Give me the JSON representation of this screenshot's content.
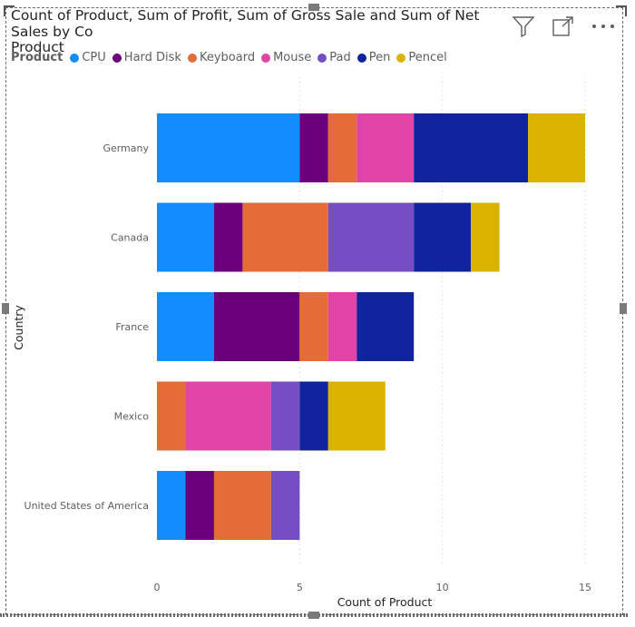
{
  "visual": {
    "title": "Count of Product, Sum of Profit, Sum of Gross Sale and Sum of Net Sales by Country and Product",
    "title_line1": "Count of Product, Sum of Profit, Sum of Gross Sale and Sum of Net Sales by Co",
    "title_line2": "Product",
    "icons": [
      "filter-icon",
      "focus-mode-icon",
      "more-options-icon"
    ]
  },
  "legend": {
    "title": "Product"
  },
  "chart_data": {
    "type": "bar",
    "orientation": "horizontal",
    "stacked": true,
    "categories": [
      "Germany",
      "Canada",
      "France",
      "Mexico",
      "United States of America"
    ],
    "series": [
      {
        "name": "CPU",
        "color": "#118DFF",
        "values": [
          5,
          2,
          2,
          0,
          1
        ]
      },
      {
        "name": "Hard Disk",
        "color": "#6B007B",
        "values": [
          1,
          1,
          3,
          0,
          1
        ]
      },
      {
        "name": "Keyboard",
        "color": "#E66C37",
        "values": [
          1,
          3,
          1,
          1,
          2
        ]
      },
      {
        "name": "Mouse",
        "color": "#E044A7",
        "values": [
          2,
          0,
          1,
          3,
          0
        ]
      },
      {
        "name": "Pad",
        "color": "#744EC2",
        "values": [
          0,
          3,
          0,
          1,
          1
        ]
      },
      {
        "name": "Pen",
        "color": "#12239E",
        "values": [
          4,
          2,
          2,
          1,
          0
        ]
      },
      {
        "name": "Pencel",
        "color": "#D9B300",
        "values": [
          2,
          1,
          0,
          2,
          0
        ]
      }
    ],
    "xlabel": "Count of Product",
    "ylabel": "Country",
    "xlim": [
      0,
      15
    ],
    "xticks": [
      0,
      5,
      10,
      15
    ],
    "grid": true,
    "legend_position": "top-left"
  }
}
